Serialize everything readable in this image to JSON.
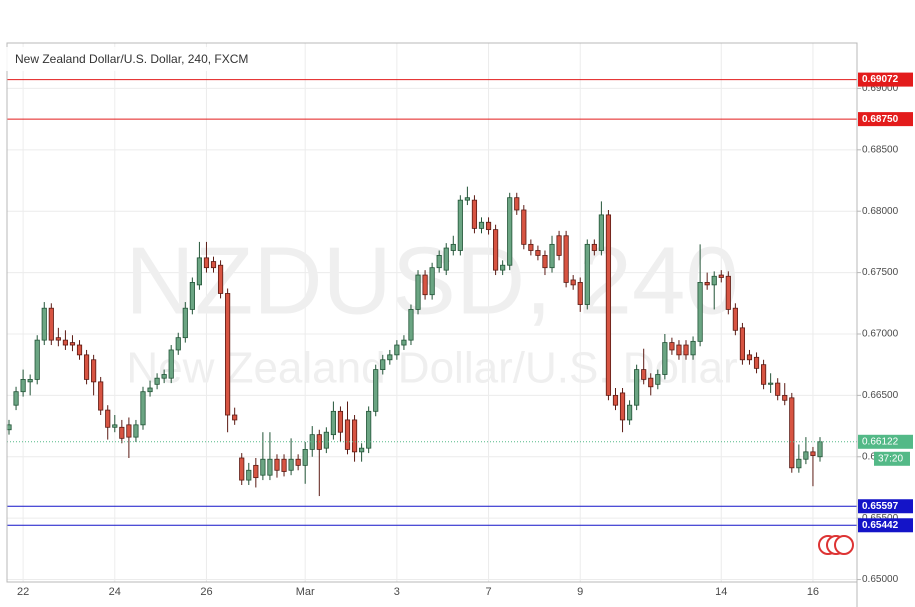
{
  "chart_data": {
    "type": "candlestick",
    "title": "New Zealand Dollar/U.S. Dollar, 240, FXCM",
    "watermark": {
      "symbol": "NZDUSD, 240",
      "description": "New Zealand Dollar/U.S. Dollar"
    },
    "categories": [
      null,
      null,
      "22",
      null,
      null,
      null,
      null,
      null,
      null,
      null,
      null,
      null,
      null,
      null,
      null,
      "24",
      null,
      null,
      null,
      null,
      null,
      null,
      null,
      null,
      null,
      null,
      null,
      null,
      "26",
      null,
      null,
      null,
      null,
      null,
      null,
      null,
      null,
      null,
      null,
      null,
      null,
      null,
      "Mar",
      null,
      null,
      null,
      null,
      null,
      null,
      null,
      null,
      null,
      null,
      null,
      null,
      "3",
      null,
      null,
      null,
      null,
      null,
      null,
      null,
      null,
      null,
      null,
      null,
      null,
      "7",
      null,
      null,
      null,
      null,
      null,
      null,
      null,
      null,
      null,
      null,
      null,
      null,
      "9",
      null,
      null,
      null,
      null,
      null,
      null,
      null,
      null,
      null,
      null,
      null,
      null,
      null,
      null,
      null,
      null,
      null,
      null,
      null,
      "14",
      null,
      null,
      null,
      null,
      null,
      null,
      null,
      null,
      null,
      null,
      null,
      null,
      "16",
      null
    ],
    "candles": {
      "open": [
        0.6622,
        0.6642,
        0.6653,
        0.6661,
        0.6663,
        0.6695,
        0.6721,
        0.6697,
        0.6695,
        0.6693,
        0.6691,
        0.6683,
        0.6679,
        0.6661,
        0.6638,
        0.6624,
        0.6624,
        0.6626,
        0.6616,
        0.6626,
        0.6653,
        0.6659,
        0.6664,
        0.6664,
        0.6687,
        0.6697,
        0.672,
        0.674,
        0.6762,
        0.6759,
        0.6756,
        0.6733,
        0.6634,
        0.6599,
        0.6581,
        0.6593,
        0.6585,
        0.6585,
        0.6598,
        0.6598,
        0.6589,
        0.6598,
        0.6593,
        0.6606,
        0.6618,
        0.6607,
        0.6618,
        0.6637,
        0.663,
        0.663,
        0.6604,
        0.6607,
        0.6637,
        0.6671,
        0.6679,
        0.6683,
        0.6691,
        0.6695,
        0.672,
        0.6748,
        0.6732,
        0.6754,
        0.6752,
        0.6768,
        0.6768,
        0.6809,
        0.6809,
        0.6786,
        0.6791,
        0.6785,
        0.6752,
        0.6756,
        0.6811,
        0.6801,
        0.6773,
        0.6768,
        0.6764,
        0.6754,
        0.678,
        0.678,
        0.6744,
        0.6742,
        0.6724,
        0.6773,
        0.6768,
        0.6797,
        0.665,
        0.6652,
        0.663,
        0.6642,
        0.6671,
        0.6664,
        0.6659,
        0.6667,
        0.6693,
        0.6691,
        0.6691,
        0.6683,
        0.6694,
        0.6742,
        0.674,
        0.6748,
        0.6747,
        0.6721,
        0.6705,
        0.6683,
        0.6681,
        0.6675,
        0.6659,
        0.666,
        0.665,
        0.6648,
        0.6591,
        0.6598,
        0.6604,
        0.66
      ],
      "high": [
        0.663,
        0.6657,
        0.6671,
        0.6667,
        0.6699,
        0.6726,
        0.6725,
        0.6705,
        0.6703,
        0.6699,
        0.6695,
        0.6687,
        0.6683,
        0.6665,
        0.6642,
        0.6634,
        0.663,
        0.6632,
        0.663,
        0.6657,
        0.6662,
        0.6668,
        0.6671,
        0.6691,
        0.6701,
        0.6726,
        0.6746,
        0.6775,
        0.6775,
        0.6763,
        0.676,
        0.6737,
        0.664,
        0.6603,
        0.6595,
        0.6599,
        0.662,
        0.662,
        0.6602,
        0.6602,
        0.6615,
        0.6602,
        0.6612,
        0.6625,
        0.6622,
        0.6624,
        0.6645,
        0.6641,
        0.6645,
        0.6634,
        0.6611,
        0.6641,
        0.6675,
        0.6683,
        0.6687,
        0.6695,
        0.6699,
        0.6724,
        0.6752,
        0.6752,
        0.6758,
        0.6768,
        0.6774,
        0.678,
        0.6813,
        0.682,
        0.6813,
        0.6795,
        0.6795,
        0.6789,
        0.676,
        0.6815,
        0.6815,
        0.6805,
        0.6777,
        0.6772,
        0.6768,
        0.678,
        0.6784,
        0.6784,
        0.6748,
        0.6746,
        0.6777,
        0.6777,
        0.6808,
        0.6801,
        0.6656,
        0.6656,
        0.6646,
        0.6675,
        0.6688,
        0.6668,
        0.6671,
        0.67,
        0.6697,
        0.6695,
        0.6695,
        0.6698,
        0.6773,
        0.675,
        0.6751,
        0.6752,
        0.6751,
        0.6725,
        0.6709,
        0.6687,
        0.6685,
        0.6679,
        0.6668,
        0.6664,
        0.666,
        0.6652,
        0.661,
        0.6616,
        0.6608,
        0.6616
      ],
      "low": [
        0.6618,
        0.6638,
        0.6649,
        0.665,
        0.6659,
        0.6691,
        0.6691,
        0.669,
        0.6687,
        0.6686,
        0.6679,
        0.6659,
        0.665,
        0.6634,
        0.6614,
        0.662,
        0.6611,
        0.6599,
        0.6612,
        0.6622,
        0.6649,
        0.6655,
        0.666,
        0.666,
        0.6683,
        0.6693,
        0.6716,
        0.6736,
        0.675,
        0.675,
        0.6729,
        0.662,
        0.6626,
        0.6577,
        0.6577,
        0.6575,
        0.6581,
        0.6581,
        0.6583,
        0.6584,
        0.6585,
        0.6589,
        0.6578,
        0.66,
        0.6568,
        0.6603,
        0.6614,
        0.6612,
        0.6602,
        0.6596,
        0.6596,
        0.6603,
        0.6633,
        0.6667,
        0.6675,
        0.6679,
        0.6687,
        0.6691,
        0.6716,
        0.6728,
        0.6728,
        0.675,
        0.6748,
        0.6764,
        0.6764,
        0.6805,
        0.6782,
        0.6782,
        0.6781,
        0.6748,
        0.6748,
        0.6752,
        0.6797,
        0.6769,
        0.6764,
        0.676,
        0.6748,
        0.675,
        0.676,
        0.6738,
        0.6736,
        0.6718,
        0.672,
        0.6764,
        0.6764,
        0.6646,
        0.6638,
        0.662,
        0.6626,
        0.6638,
        0.6659,
        0.665,
        0.6655,
        0.6663,
        0.6683,
        0.6679,
        0.6679,
        0.6679,
        0.669,
        0.6736,
        0.672,
        0.6742,
        0.6716,
        0.6699,
        0.6675,
        0.6675,
        0.6668,
        0.6655,
        0.6652,
        0.6646,
        0.6642,
        0.6587,
        0.6587,
        0.6594,
        0.6576,
        0.6596
      ],
      "close": [
        0.6626,
        0.6653,
        0.6663,
        0.6663,
        0.6695,
        0.6721,
        0.6695,
        0.6695,
        0.6691,
        0.6691,
        0.6683,
        0.6663,
        0.6661,
        0.6638,
        0.6624,
        0.6626,
        0.6615,
        0.6616,
        0.6626,
        0.6653,
        0.6656,
        0.6664,
        0.6667,
        0.6687,
        0.6697,
        0.6721,
        0.6742,
        0.6762,
        0.6754,
        0.6754,
        0.6733,
        0.6634,
        0.663,
        0.6581,
        0.6589,
        0.6583,
        0.6598,
        0.6598,
        0.6589,
        0.6588,
        0.6598,
        0.6593,
        0.6606,
        0.6618,
        0.6606,
        0.662,
        0.6637,
        0.662,
        0.6606,
        0.6604,
        0.6607,
        0.6637,
        0.6671,
        0.6679,
        0.6683,
        0.6691,
        0.6695,
        0.672,
        0.6748,
        0.6732,
        0.6754,
        0.6764,
        0.677,
        0.6773,
        0.6809,
        0.6811,
        0.6786,
        0.6791,
        0.6785,
        0.6752,
        0.6756,
        0.6811,
        0.6801,
        0.6773,
        0.6768,
        0.6764,
        0.6754,
        0.6773,
        0.6764,
        0.6742,
        0.674,
        0.6724,
        0.6773,
        0.6768,
        0.6797,
        0.665,
        0.6642,
        0.663,
        0.6642,
        0.6671,
        0.6663,
        0.6657,
        0.6667,
        0.6693,
        0.6687,
        0.6683,
        0.6683,
        0.6694,
        0.6742,
        0.674,
        0.6747,
        0.6746,
        0.672,
        0.6703,
        0.6679,
        0.6679,
        0.6672,
        0.6659,
        0.666,
        0.665,
        0.6646,
        0.6591,
        0.6598,
        0.6604,
        0.6601,
        0.66122
      ]
    },
    "up_color": "#6ba583",
    "up_border": "#225437",
    "down_color": "#d75442",
    "down_border": "#5b1a13",
    "ylim": [
      0.6498,
      0.6937
    ],
    "yticks": [
      {
        "value": 0.65,
        "label": "0.65000"
      },
      {
        "value": 0.655,
        "label": "0.65500"
      },
      {
        "value": 0.66,
        "label": "0.66000"
      },
      {
        "value": 0.665,
        "label": "0.66500"
      },
      {
        "value": 0.67,
        "label": "0.67000"
      },
      {
        "value": 0.675,
        "label": "0.67500"
      },
      {
        "value": 0.68,
        "label": "0.68000"
      },
      {
        "value": 0.685,
        "label": "0.68500"
      },
      {
        "value": 0.69,
        "label": "0.69000"
      }
    ],
    "grid": true,
    "levels": [
      {
        "value": 0.69072,
        "label": "0.69072",
        "color": "#e31b1b"
      },
      {
        "value": 0.6875,
        "label": "0.68750",
        "color": "#e31b1b"
      },
      {
        "value": 0.65597,
        "label": "0.65597",
        "color": "#1414c8"
      },
      {
        "value": 0.65442,
        "label": "0.65442",
        "color": "#1414c8"
      }
    ],
    "last_price": {
      "value": 0.66122,
      "label": "0.66122",
      "color": "#53b987",
      "countdown": "37:20"
    }
  }
}
